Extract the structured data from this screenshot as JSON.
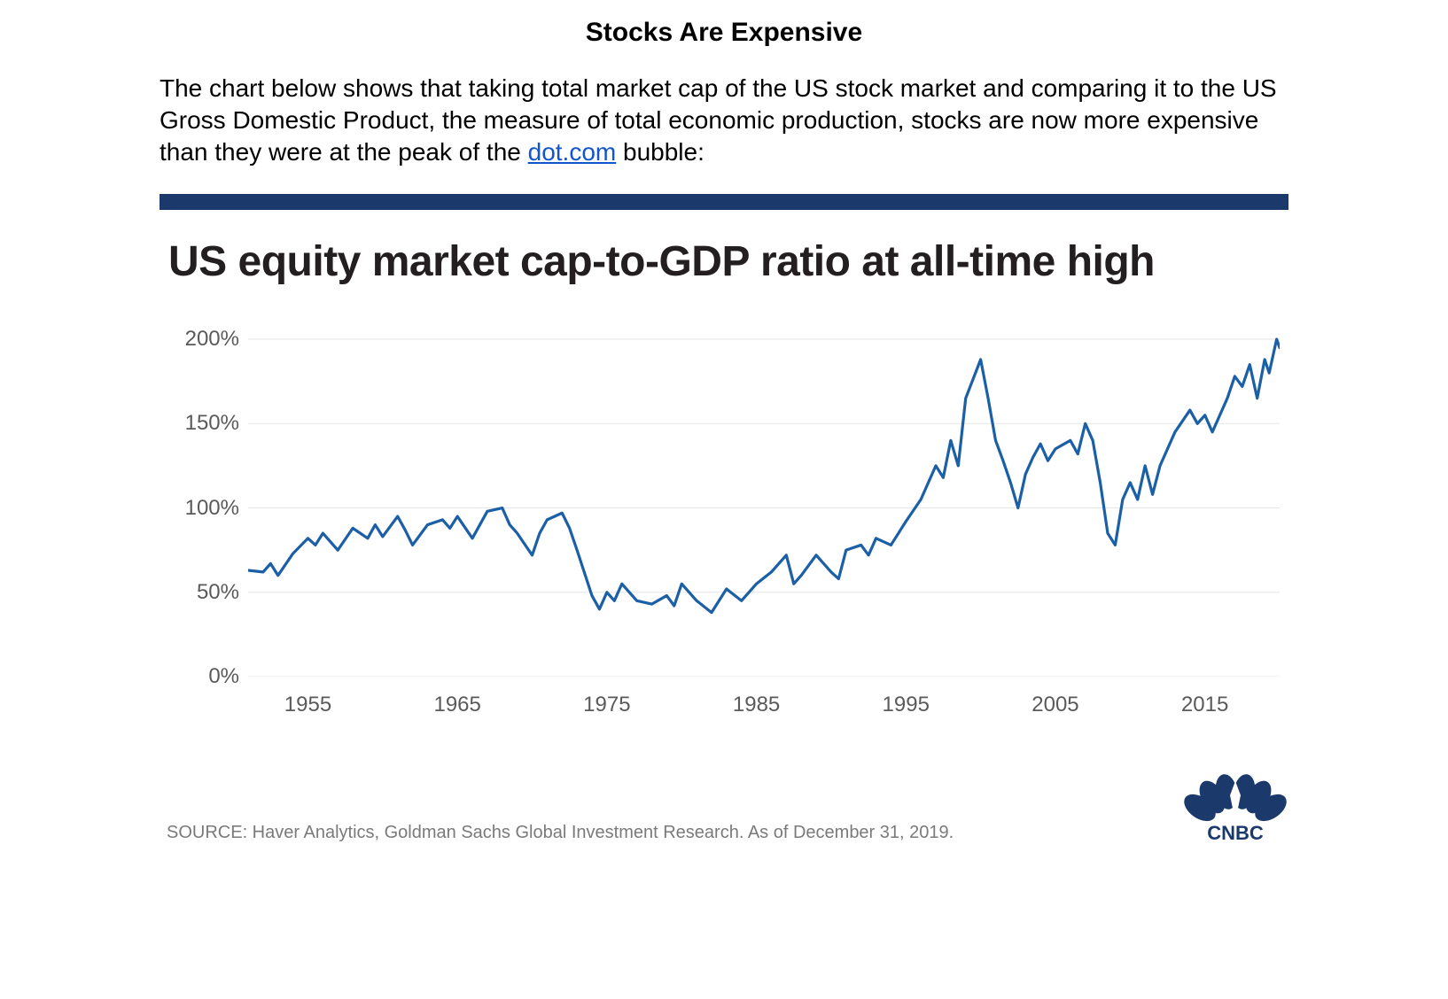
{
  "doc": {
    "title": "Stocks Are Expensive",
    "body_pre": "The chart below shows that taking total market cap of the US stock market and comparing it to the US Gross Domestic Product, the measure of total economic production, stocks are now more expensive than they were at the peak of the ",
    "link_text": "dot.com",
    "body_post": " bubble:",
    "title_fontsize": 30,
    "body_fontsize": 28,
    "link_color": "#1155cc"
  },
  "chart": {
    "type": "line",
    "topbar_color": "#1b3a6b",
    "title": "US equity market cap-to-GDP ratio at all-time high",
    "title_color": "#231f20",
    "title_fontsize": 48,
    "background_color": "#ffffff",
    "grid_color": "#e6e6e6",
    "axis_label_color": "#5a5a5a",
    "axis_label_fontsize": 24,
    "line_color": "#1b5fa6",
    "line_width": 3.2,
    "x": {
      "min": 1951,
      "max": 2020,
      "ticks": [
        1955,
        1965,
        1975,
        1985,
        1995,
        2005,
        2015
      ]
    },
    "y": {
      "min": 0,
      "max": 210,
      "ticks": [
        0,
        50,
        100,
        150,
        200
      ],
      "tick_suffix": "%"
    },
    "series": [
      {
        "x": 1951,
        "y": 63
      },
      {
        "x": 1952,
        "y": 62
      },
      {
        "x": 1952.5,
        "y": 67
      },
      {
        "x": 1953,
        "y": 60
      },
      {
        "x": 1954,
        "y": 73
      },
      {
        "x": 1955,
        "y": 82
      },
      {
        "x": 1955.5,
        "y": 78
      },
      {
        "x": 1956,
        "y": 85
      },
      {
        "x": 1957,
        "y": 75
      },
      {
        "x": 1958,
        "y": 88
      },
      {
        "x": 1959,
        "y": 82
      },
      {
        "x": 1959.5,
        "y": 90
      },
      {
        "x": 1960,
        "y": 83
      },
      {
        "x": 1961,
        "y": 95
      },
      {
        "x": 1961.5,
        "y": 87
      },
      {
        "x": 1962,
        "y": 78
      },
      {
        "x": 1963,
        "y": 90
      },
      {
        "x": 1964,
        "y": 93
      },
      {
        "x": 1964.5,
        "y": 88
      },
      {
        "x": 1965,
        "y": 95
      },
      {
        "x": 1966,
        "y": 82
      },
      {
        "x": 1967,
        "y": 98
      },
      {
        "x": 1968,
        "y": 100
      },
      {
        "x": 1968.5,
        "y": 90
      },
      {
        "x": 1969,
        "y": 85
      },
      {
        "x": 1970,
        "y": 72
      },
      {
        "x": 1970.5,
        "y": 85
      },
      {
        "x": 1971,
        "y": 93
      },
      {
        "x": 1972,
        "y": 97
      },
      {
        "x": 1972.5,
        "y": 88
      },
      {
        "x": 1973,
        "y": 75
      },
      {
        "x": 1974,
        "y": 48
      },
      {
        "x": 1974.5,
        "y": 40
      },
      {
        "x": 1975,
        "y": 50
      },
      {
        "x": 1975.5,
        "y": 45
      },
      {
        "x": 1976,
        "y": 55
      },
      {
        "x": 1977,
        "y": 45
      },
      {
        "x": 1978,
        "y": 43
      },
      {
        "x": 1979,
        "y": 48
      },
      {
        "x": 1979.5,
        "y": 42
      },
      {
        "x": 1980,
        "y": 55
      },
      {
        "x": 1981,
        "y": 45
      },
      {
        "x": 1982,
        "y": 38
      },
      {
        "x": 1982.5,
        "y": 45
      },
      {
        "x": 1983,
        "y": 52
      },
      {
        "x": 1984,
        "y": 45
      },
      {
        "x": 1984.5,
        "y": 50
      },
      {
        "x": 1985,
        "y": 55
      },
      {
        "x": 1986,
        "y": 62
      },
      {
        "x": 1987,
        "y": 72
      },
      {
        "x": 1987.5,
        "y": 55
      },
      {
        "x": 1988,
        "y": 60
      },
      {
        "x": 1989,
        "y": 72
      },
      {
        "x": 1990,
        "y": 62
      },
      {
        "x": 1990.5,
        "y": 58
      },
      {
        "x": 1991,
        "y": 75
      },
      {
        "x": 1992,
        "y": 78
      },
      {
        "x": 1992.5,
        "y": 72
      },
      {
        "x": 1993,
        "y": 82
      },
      {
        "x": 1994,
        "y": 78
      },
      {
        "x": 1995,
        "y": 92
      },
      {
        "x": 1996,
        "y": 105
      },
      {
        "x": 1997,
        "y": 125
      },
      {
        "x": 1997.5,
        "y": 118
      },
      {
        "x": 1998,
        "y": 140
      },
      {
        "x": 1998.5,
        "y": 125
      },
      {
        "x": 1999,
        "y": 165
      },
      {
        "x": 2000,
        "y": 188
      },
      {
        "x": 2000.5,
        "y": 165
      },
      {
        "x": 2001,
        "y": 140
      },
      {
        "x": 2001.5,
        "y": 128
      },
      {
        "x": 2002,
        "y": 115
      },
      {
        "x": 2002.5,
        "y": 100
      },
      {
        "x": 2003,
        "y": 120
      },
      {
        "x": 2003.5,
        "y": 130
      },
      {
        "x": 2004,
        "y": 138
      },
      {
        "x": 2004.5,
        "y": 128
      },
      {
        "x": 2005,
        "y": 135
      },
      {
        "x": 2006,
        "y": 140
      },
      {
        "x": 2006.5,
        "y": 132
      },
      {
        "x": 2007,
        "y": 150
      },
      {
        "x": 2007.5,
        "y": 140
      },
      {
        "x": 2008,
        "y": 115
      },
      {
        "x": 2008.5,
        "y": 85
      },
      {
        "x": 2009,
        "y": 78
      },
      {
        "x": 2009.5,
        "y": 105
      },
      {
        "x": 2010,
        "y": 115
      },
      {
        "x": 2010.5,
        "y": 105
      },
      {
        "x": 2011,
        "y": 125
      },
      {
        "x": 2011.5,
        "y": 108
      },
      {
        "x": 2012,
        "y": 125
      },
      {
        "x": 2013,
        "y": 145
      },
      {
        "x": 2014,
        "y": 158
      },
      {
        "x": 2014.5,
        "y": 150
      },
      {
        "x": 2015,
        "y": 155
      },
      {
        "x": 2015.5,
        "y": 145
      },
      {
        "x": 2016,
        "y": 155
      },
      {
        "x": 2016.5,
        "y": 165
      },
      {
        "x": 2017,
        "y": 178
      },
      {
        "x": 2017.5,
        "y": 172
      },
      {
        "x": 2018,
        "y": 185
      },
      {
        "x": 2018.5,
        "y": 165
      },
      {
        "x": 2019,
        "y": 188
      },
      {
        "x": 2019.3,
        "y": 180
      },
      {
        "x": 2019.8,
        "y": 200
      },
      {
        "x": 2020,
        "y": 195
      }
    ],
    "source": "SOURCE: Haver Analytics, Goldman Sachs Global Investment Research. As of December 31, 2019.",
    "source_color": "#7a7a7a",
    "source_fontsize": 20,
    "logo": {
      "text": "CNBC",
      "petal_colors": [
        "#1b3a6b",
        "#1b3a6b",
        "#1b3a6b",
        "#1b3a6b",
        "#1b3a6b",
        "#1b3a6b"
      ],
      "text_color": "#1b3a6b"
    }
  }
}
